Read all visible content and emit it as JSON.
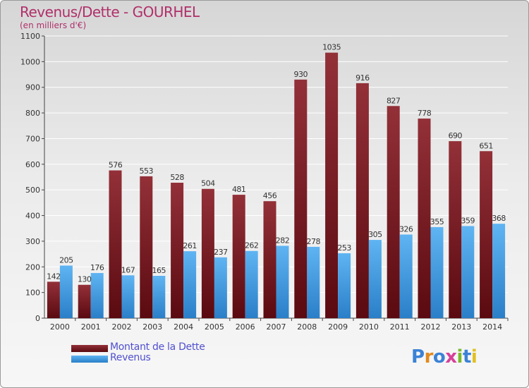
{
  "header": {
    "title": "Revenus/Dette - GOURHEL",
    "subtitle": "(en milliers d'€)"
  },
  "legend": {
    "items": [
      {
        "label": "Montant de la Dette",
        "color": "#7a1a1f"
      },
      {
        "label": "Revenus",
        "color": "#3d9be6"
      }
    ]
  },
  "logo": {
    "text": "Proxiti"
  },
  "chart_data": {
    "type": "bar",
    "title": "Revenus/Dette - GOURHEL",
    "subtitle": "(en milliers d'€)",
    "categories": [
      "2000",
      "2001",
      "2002",
      "2003",
      "2004",
      "2005",
      "2006",
      "2007",
      "2008",
      "2009",
      "2010",
      "2011",
      "2012",
      "2013",
      "2014"
    ],
    "series": [
      {
        "name": "Montant de la Dette",
        "color": "#7a1a1f",
        "values": [
          142,
          130,
          576,
          553,
          528,
          504,
          481,
          456,
          930,
          1035,
          916,
          827,
          778,
          690,
          651
        ]
      },
      {
        "name": "Revenus",
        "color": "#3d9be6",
        "values": [
          205,
          176,
          167,
          165,
          261,
          237,
          262,
          282,
          278,
          253,
          305,
          326,
          355,
          359,
          368
        ]
      }
    ],
    "ylim": [
      0,
      1100
    ],
    "yticks": [
      0,
      100,
      200,
      300,
      400,
      500,
      600,
      700,
      800,
      900,
      1000,
      1100
    ],
    "grid": true,
    "legend_position": "bottom-left"
  }
}
